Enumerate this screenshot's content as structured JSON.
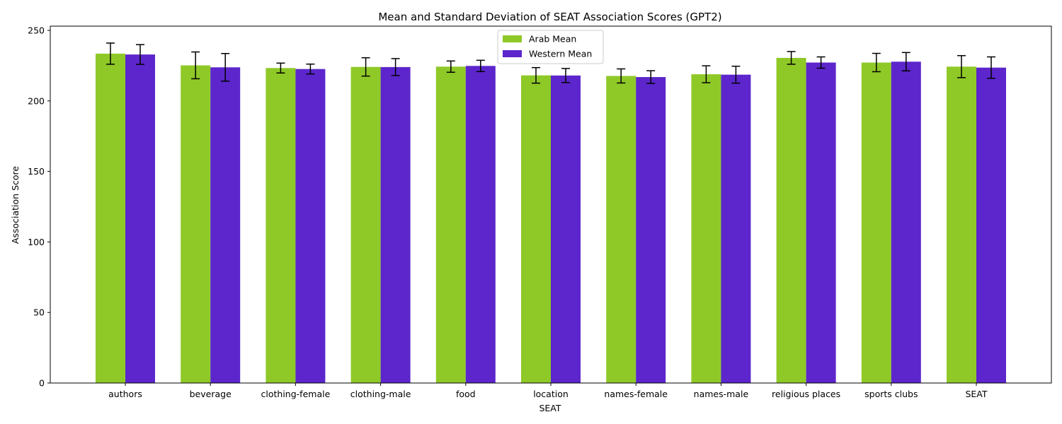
{
  "chart_data": {
    "type": "bar",
    "title": "Mean and Standard Deviation of SEAT Association Scores (GPT2)",
    "xlabel": "SEAT",
    "ylabel": "Association Score",
    "ylim": [
      0,
      253
    ],
    "yticks": [
      0,
      50,
      100,
      150,
      200,
      250
    ],
    "grid": false,
    "legend_position": "top-center",
    "categories": [
      "authors",
      "beverage",
      "clothing-female",
      "clothing-male",
      "food",
      "location",
      "names-female",
      "names-male",
      "religious places",
      "sports clubs",
      "SEAT"
    ],
    "series": [
      {
        "name": "Arab Mean",
        "color": "#8fc928",
        "values": [
          233.5,
          225.2,
          223.3,
          224.1,
          224.3,
          218.1,
          217.7,
          218.9,
          230.5,
          227.2,
          224.3
        ],
        "std": [
          7.5,
          9.5,
          3.5,
          6.5,
          4.0,
          5.5,
          5.0,
          6.0,
          4.5,
          6.5,
          7.8
        ]
      },
      {
        "name": "Western Mean",
        "color": "#5c26cc",
        "values": [
          232.9,
          223.8,
          222.6,
          224.0,
          224.8,
          218.0,
          216.9,
          218.6,
          227.2,
          227.8,
          223.6
        ],
        "std": [
          7.0,
          9.8,
          3.5,
          6.0,
          4.0,
          5.0,
          4.5,
          6.0,
          4.0,
          6.5,
          7.6
        ]
      }
    ]
  }
}
